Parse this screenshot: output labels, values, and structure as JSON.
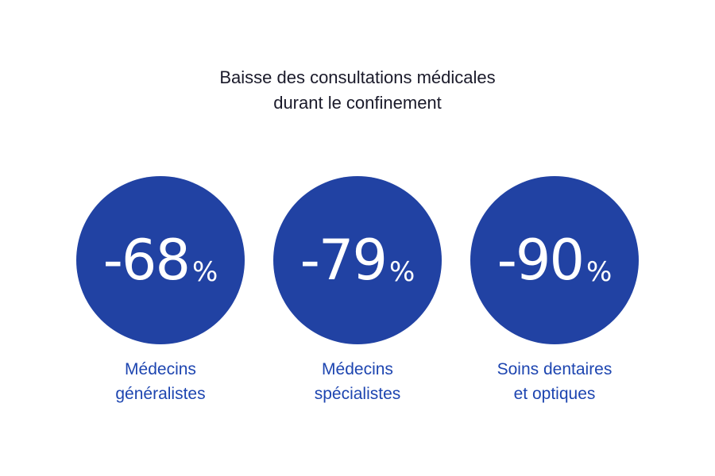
{
  "title": {
    "line1": "Baisse des consultations médicales",
    "line2": "durant le confinement"
  },
  "colors": {
    "circle": "#2142a3",
    "label": "#1d45b0",
    "title": "#1a1a2a"
  },
  "stats": [
    {
      "value": "-68",
      "unit": "%",
      "label_line1": "Médecins",
      "label_line2": "généralistes"
    },
    {
      "value": "-79",
      "unit": "%",
      "label_line1": "Médecins",
      "label_line2": "spécialistes"
    },
    {
      "value": "-90",
      "unit": "%",
      "label_line1": "Soins dentaires",
      "label_line2": "et optiques"
    }
  ]
}
